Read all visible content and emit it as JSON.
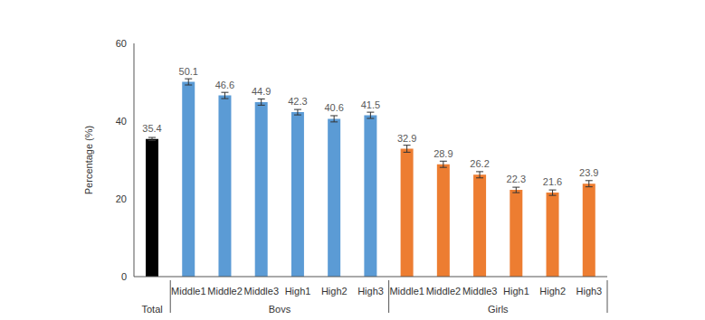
{
  "chart_data": {
    "type": "bar",
    "ylabel": "Percentage (%)",
    "categories": [
      null,
      "Middle1",
      "Middle2",
      "Middle3",
      "High1",
      "High2",
      "High3",
      "Middle1",
      "Middle2",
      "Middle3",
      "High1",
      "High2",
      "High3"
    ],
    "groups": [
      {
        "name": "Total",
        "count": 1
      },
      {
        "name": "Boys",
        "count": 6
      },
      {
        "name": "Girls",
        "count": 6
      }
    ],
    "values": [
      35.4,
      50.1,
      46.6,
      44.9,
      42.3,
      40.6,
      41.5,
      32.9,
      28.9,
      26.2,
      22.3,
      21.6,
      23.9
    ],
    "errors": [
      0.4,
      0.8,
      0.8,
      0.8,
      0.7,
      0.8,
      0.8,
      0.9,
      0.8,
      0.8,
      0.7,
      0.7,
      0.8
    ],
    "colors": [
      "#000000",
      "#5b9bd5",
      "#5b9bd5",
      "#5b9bd5",
      "#5b9bd5",
      "#5b9bd5",
      "#5b9bd5",
      "#ed7d31",
      "#ed7d31",
      "#ed7d31",
      "#ed7d31",
      "#ed7d31",
      "#ed7d31"
    ],
    "ylim": [
      0,
      60
    ],
    "yticks": [
      0,
      20,
      40,
      60
    ],
    "grid": false,
    "data_labels": true
  }
}
